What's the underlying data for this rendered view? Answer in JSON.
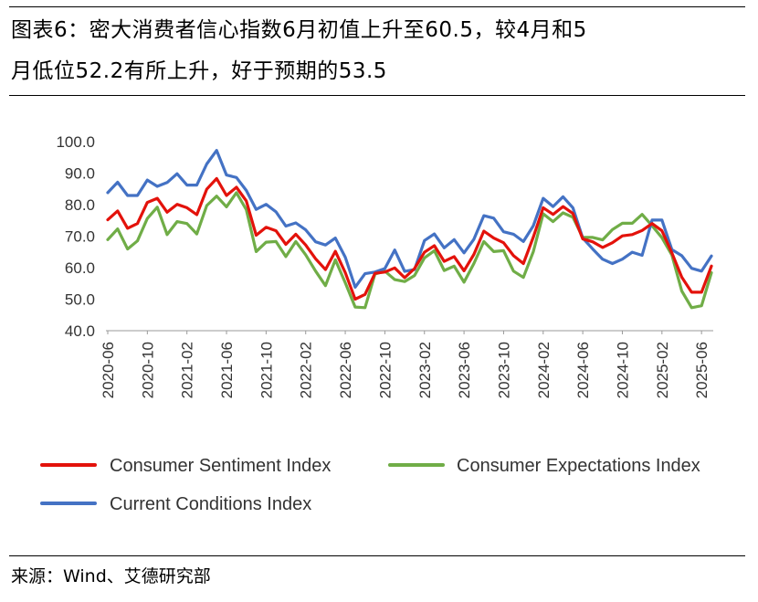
{
  "title_line1": "图表6：密大消费者信心指数6月初值上升至60.5，较4月和5",
  "title_line2": "月低位52.2有所上升，好于预期的53.5",
  "source": "来源：Wind、艾德研究部",
  "chart_data": {
    "type": "line",
    "title": "",
    "xlabel": "",
    "ylabel": "",
    "ylim": [
      40,
      100
    ],
    "yticks": [
      "40.0",
      "50.0",
      "60.0",
      "70.0",
      "80.0",
      "90.0",
      "100.0"
    ],
    "xtick_labels": [
      "2020-06",
      "2020-10",
      "2021-02",
      "2021-06",
      "2021-10",
      "2022-02",
      "2022-06",
      "2022-10",
      "2023-02",
      "2023-06",
      "2023-10",
      "2024-02",
      "2024-06",
      "2024-10",
      "2025-02",
      "2025-06"
    ],
    "series": [
      {
        "name": "Consumer Sentiment Index",
        "color": "#e3120b",
        "values": [
          75.2,
          78.0,
          72.5,
          74.0,
          80.7,
          82.0,
          77.6,
          80.1,
          79.0,
          76.8,
          84.9,
          88.3,
          82.9,
          85.5,
          81.2,
          70.3,
          72.8,
          71.7,
          67.4,
          70.6,
          67.2,
          62.8,
          59.4,
          65.2,
          58.4,
          50.0,
          51.5,
          58.2,
          58.6,
          59.9,
          56.8,
          59.7,
          64.9,
          67.0,
          62.0,
          63.5,
          59.0,
          64.2,
          71.6,
          69.4,
          67.9,
          63.8,
          61.3,
          69.7,
          79.0,
          76.9,
          79.4,
          77.2,
          69.1,
          68.2,
          66.4,
          67.9,
          70.1,
          70.5,
          71.8,
          74.0,
          71.7,
          64.7,
          57.0,
          52.2,
          52.2,
          60.5
        ]
      },
      {
        "name": "Consumer Expectations Index",
        "color": "#70ad47",
        "values": [
          68.9,
          72.3,
          65.9,
          68.5,
          75.6,
          79.2,
          70.5,
          74.6,
          74.0,
          70.7,
          79.7,
          82.7,
          79.3,
          83.8,
          78.4,
          65.1,
          68.1,
          68.3,
          63.5,
          68.3,
          64.1,
          58.9,
          54.3,
          62.5,
          55.2,
          47.5,
          47.3,
          58.0,
          58.9,
          56.2,
          55.6,
          57.5,
          63.1,
          65.4,
          59.1,
          60.5,
          55.4,
          61.3,
          68.3,
          65.1,
          65.4,
          58.9,
          56.9,
          65.1,
          77.1,
          74.6,
          77.4,
          76.0,
          69.6,
          69.6,
          68.8,
          72.1,
          74.1,
          74.1,
          76.9,
          73.3,
          69.5,
          64.0,
          52.6,
          47.3,
          47.9,
          58.4
        ]
      },
      {
        "name": "Current Conditions Index",
        "color": "#4472c4",
        "values": [
          83.8,
          87.1,
          82.9,
          82.9,
          87.8,
          85.8,
          87.0,
          89.8,
          86.2,
          86.2,
          92.9,
          97.2,
          89.4,
          88.6,
          84.5,
          78.5,
          80.1,
          77.7,
          73.2,
          74.2,
          72.0,
          68.2,
          67.2,
          69.4,
          63.3,
          53.8,
          58.1,
          58.6,
          59.7,
          65.6,
          58.8,
          59.4,
          68.6,
          70.7,
          66.3,
          68.9,
          64.7,
          69.0,
          76.5,
          75.7,
          71.4,
          70.6,
          68.3,
          73.3,
          82.0,
          79.4,
          82.5,
          79.0,
          69.4,
          65.9,
          62.7,
          61.3,
          62.7,
          64.9,
          63.9,
          75.1,
          75.1,
          65.7,
          63.8,
          59.8,
          58.9,
          63.7
        ]
      }
    ]
  },
  "legend": {
    "items": [
      {
        "label": "Consumer Sentiment Index",
        "color": "#e3120b"
      },
      {
        "label": "Consumer Expectations Index",
        "color": "#70ad47"
      },
      {
        "label": "Current Conditions Index",
        "color": "#4472c4"
      }
    ]
  }
}
